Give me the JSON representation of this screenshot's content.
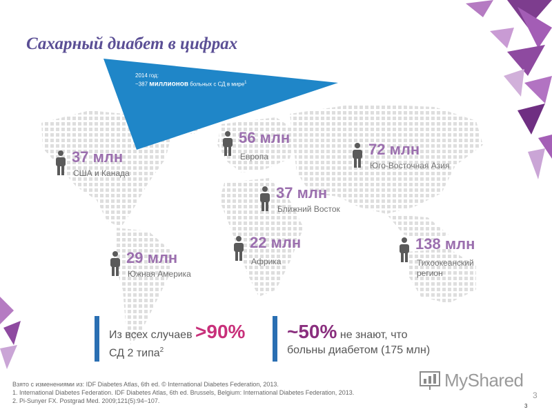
{
  "title": "Сахарный диабет в цифрах",
  "callout": {
    "line1": "2014 год:",
    "line2_prefix": "~387 ",
    "line2_strong": "миллионов",
    "line2_suffix": " больных с СД в мире",
    "line2_sup": "1"
  },
  "regions": [
    {
      "value": "37 млн",
      "label": "США и Канада"
    },
    {
      "value": "56 млн",
      "label": "Европа"
    },
    {
      "value": "72 млн",
      "label": "Юго-Восточная Азия"
    },
    {
      "value": "37 млн",
      "label": "Ближний Восток"
    },
    {
      "value": "29 млн",
      "label": "Южная Америка"
    },
    {
      "value": "22 млн",
      "label": "Африка"
    },
    {
      "value": "138 млн",
      "label_line1": "Тихоокеанский",
      "label_line2": "регион"
    }
  ],
  "stats": {
    "left_line1": "Из всех случаев ",
    "left_value": ">90%",
    "left_line2": "СД 2 типа",
    "left_sup": "2",
    "right_value": "~50%",
    "right_line1": " не знают, что",
    "right_line2": "больны диабетом (175 млн)"
  },
  "footnotes": {
    "line0": "Взято с изменениями из: IDF Diabetes Atlas, 6th ed. © International Diabetes Federation, 2013.",
    "line1": "1. International Diabetes Federation. IDF Diabetes Atlas, 6th ed. Brussels, Belgium: International Diabetes Federation, 2013.",
    "line2": "2. Pi-Sunyer FX. Postgrad Med. 2009;121(5):94−107."
  },
  "page_number_large": "3",
  "page_number_small": "3",
  "logo_text": "MyShared",
  "colors": {
    "title": "#5b4f95",
    "value": "#9b6fae",
    "callout_bg": "#1f86c8",
    "bar": "#2a6fb3",
    "accent": "#c8307a",
    "map_dots": "#dcdcdc"
  },
  "icons": [
    "person-icon",
    "presentation-icon",
    "decorative-triangles"
  ]
}
